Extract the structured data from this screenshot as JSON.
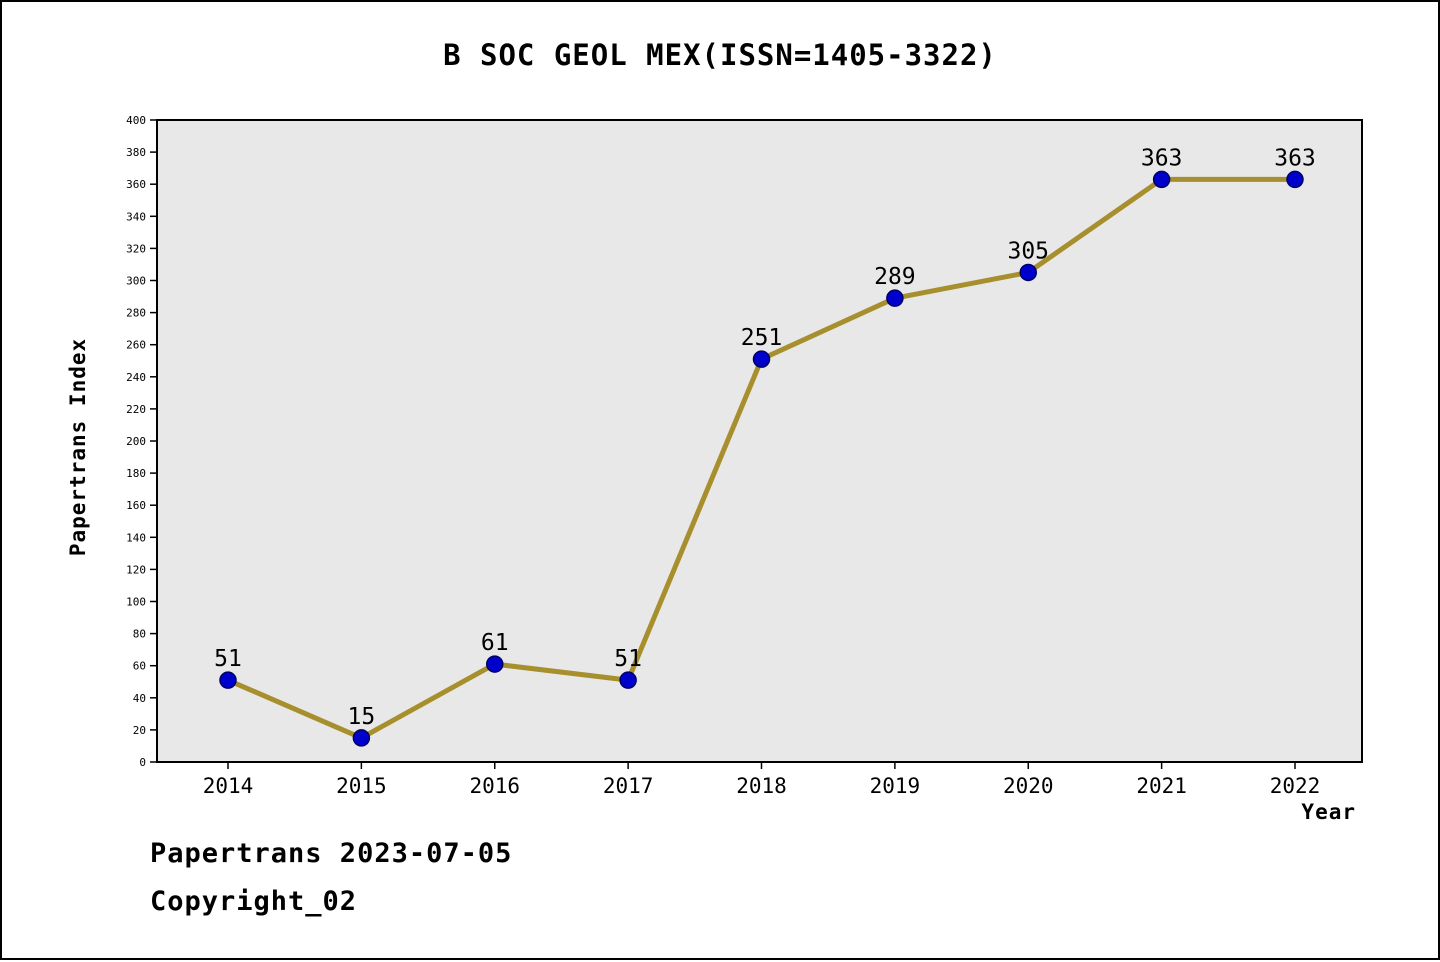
{
  "title": "B SOC GEOL MEX(ISSN=1405-3322)",
  "footer": {
    "line1": "Papertrans 2023-07-05",
    "line2": "Copyright_02"
  },
  "chart_data": {
    "type": "line",
    "title": "B SOC GEOL MEX(ISSN=1405-3322)",
    "x": [
      2014,
      2015,
      2016,
      2017,
      2018,
      2019,
      2020,
      2021,
      2022
    ],
    "values": [
      51,
      15,
      61,
      51,
      251,
      289,
      305,
      363,
      363
    ],
    "xlabel": "Year",
    "ylabel": "Papertrans Index",
    "ylim": [
      0,
      400
    ],
    "ytick_step": 20,
    "grid": false,
    "legend": "none",
    "line_color": "#a78f2d",
    "marker_color": "#0000cc",
    "marker_edge_color": "#000066",
    "plot_bg": "#e8e8e8",
    "frame_color": "#000000"
  }
}
